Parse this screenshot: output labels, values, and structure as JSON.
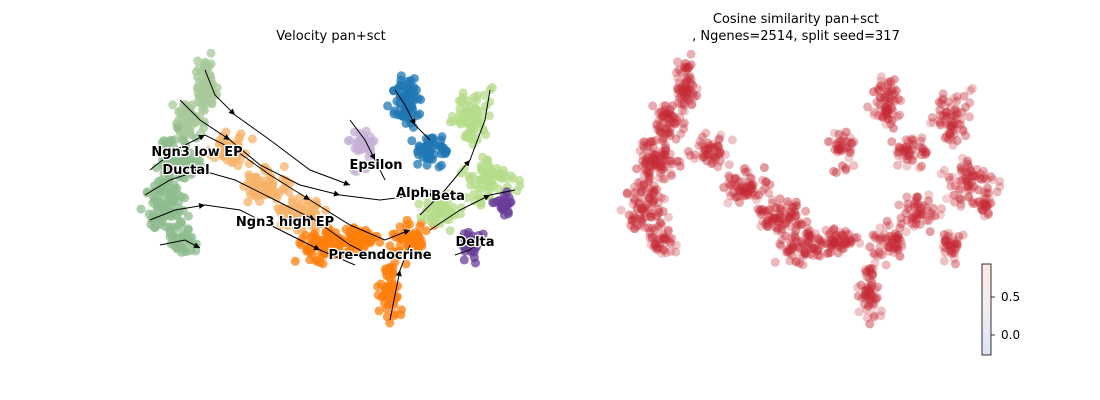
{
  "chart_data": [
    {
      "type": "scatter",
      "title": "Velocity pan+sct",
      "xlabel": "",
      "ylabel": "",
      "axes_visible": false,
      "grid": false,
      "overlay": "velocity streamlines (black arrows)",
      "colors": {
        "Ductal": "#8fbc8f",
        "Ngn3 low EP": "#a8c99a",
        "Ngn3 high EP": "#f7b36a",
        "Pre-endocrine": "#ff7f0e",
        "Alpha": "#1f77b4",
        "Beta": "#b5dc8a",
        "Delta": "#6a3d9a",
        "Epsilon": "#c5b0d5"
      },
      "cluster_labels": [
        {
          "text": "Ngn3 low EP",
          "x": 0.24,
          "y": 0.73
        },
        {
          "text": "Ductal",
          "x": 0.25,
          "y": 0.67
        },
        {
          "text": "Ngn3 high EP",
          "x": 0.39,
          "y": 0.47
        },
        {
          "text": "Epsilon",
          "x": 0.58,
          "y": 0.68
        },
        {
          "text": "Alpha",
          "x": 0.66,
          "y": 0.57
        },
        {
          "text": "Beta",
          "x": 0.75,
          "y": 0.56
        },
        {
          "text": "Delta",
          "x": 0.89,
          "y": 0.38
        },
        {
          "text": "Pre-endocrine",
          "x": 0.74,
          "y": 0.33
        }
      ]
    },
    {
      "type": "scatter",
      "title_lines": [
        "Cosine similarity pan+sct",
        ", Ngenes=2514, split seed=317"
      ],
      "xlabel": "",
      "ylabel": "",
      "axes_visible": false,
      "grid": false,
      "point_color": "#c62a35",
      "colorbar": {
        "ticks": [
          0.5,
          0.0
        ],
        "tick_labels": [
          "0.5",
          "0.0"
        ],
        "range": [
          -0.25,
          0.95
        ],
        "colors": [
          "#dbe3f7",
          "#fde8e1"
        ]
      }
    }
  ]
}
